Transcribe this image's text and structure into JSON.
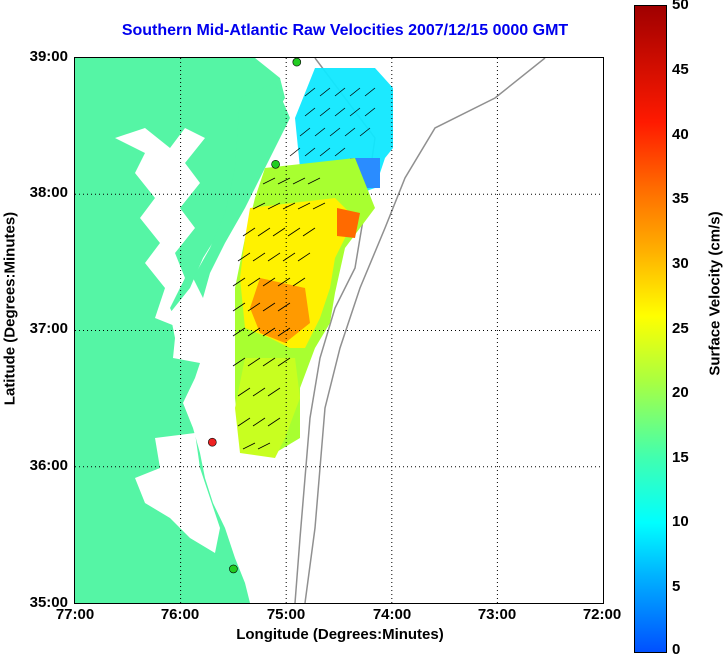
{
  "title": "Southern Mid-Atlantic Raw Velocities 2007/12/15 0000 GMT",
  "axes": {
    "xlabel": "Longitude (Degrees:Minutes)",
    "ylabel": "Latitude (Degrees:Minutes)",
    "x_ticks": [
      "77:00",
      "76:00",
      "75:00",
      "74:00",
      "73:00",
      "72:00"
    ],
    "y_ticks": [
      "39:00",
      "38:00",
      "37:00",
      "36:00",
      "35:00"
    ],
    "xlim_deg_west": [
      77,
      72
    ],
    "ylim_deg_north": [
      35,
      39
    ],
    "grid": "dotted"
  },
  "colorbar": {
    "label": "Surface Velocity (cm/s)",
    "ticks": [
      "50",
      "45",
      "40",
      "35",
      "30",
      "25",
      "20",
      "15",
      "10",
      "5",
      "0"
    ],
    "range": [
      0,
      50
    ],
    "colormap": "jet"
  },
  "colors": {
    "land": "#55f5a5",
    "title": "#0000ee",
    "bathymetry": "#909090"
  },
  "stations": [
    {
      "name": "station-north",
      "lon": -74.9,
      "lat": 38.97,
      "color": "#22cc22"
    },
    {
      "name": "station-mid",
      "lon": -75.1,
      "lat": 38.22,
      "color": "#22cc22"
    },
    {
      "name": "station-hatteras-north",
      "lon": -75.7,
      "lat": 36.18,
      "color": "#ee2222"
    },
    {
      "name": "station-hatteras-south",
      "lon": -75.5,
      "lat": 35.25,
      "color": "#22cc22"
    }
  ]
}
